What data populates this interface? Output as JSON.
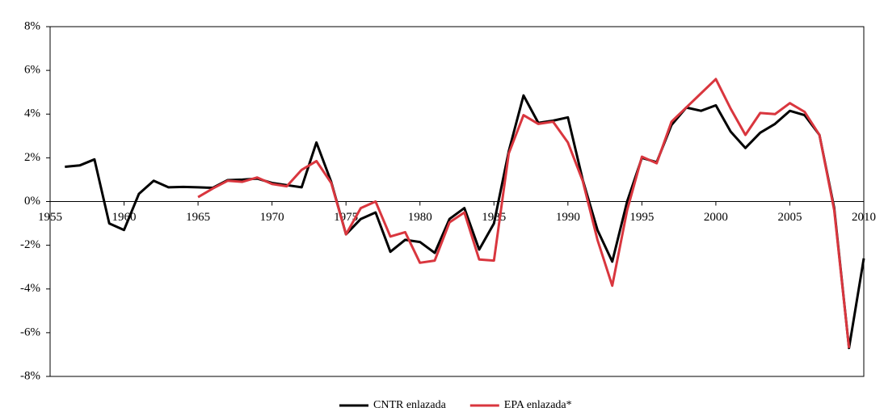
{
  "chart_data": {
    "type": "line",
    "x": [
      1956,
      1957,
      1958,
      1959,
      1960,
      1961,
      1962,
      1963,
      1964,
      1965,
      1966,
      1967,
      1968,
      1969,
      1970,
      1971,
      1972,
      1973,
      1974,
      1975,
      1976,
      1977,
      1978,
      1979,
      1980,
      1981,
      1982,
      1983,
      1984,
      1985,
      1986,
      1987,
      1988,
      1989,
      1990,
      1991,
      1992,
      1993,
      1994,
      1995,
      1996,
      1997,
      1998,
      1999,
      2000,
      2001,
      2002,
      2003,
      2004,
      2005,
      2006,
      2007,
      2008,
      2009,
      2010
    ],
    "series": [
      {
        "name": "CNTR enlazada",
        "color": "#000000",
        "values": [
          1.59,
          1.65,
          1.93,
          -1.0,
          -1.3,
          0.35,
          0.95,
          0.65,
          0.67,
          0.65,
          0.63,
          0.98,
          1.0,
          1.05,
          0.85,
          0.75,
          0.65,
          2.7,
          0.9,
          -1.5,
          -0.8,
          -0.5,
          -2.3,
          -1.75,
          -1.85,
          -2.35,
          -0.8,
          -0.3,
          -2.2,
          -1.0,
          2.3,
          4.85,
          3.6,
          3.7,
          3.85,
          1.0,
          -1.3,
          -2.75,
          0.0,
          2.0,
          1.8,
          3.5,
          4.3,
          4.15,
          4.4,
          3.2,
          2.45,
          3.15,
          3.55,
          4.15,
          3.95,
          3.05,
          -0.3,
          -6.7,
          -2.6
        ]
      },
      {
        "name": "EPA enlazada*",
        "color": "#d9363e",
        "values": [
          null,
          null,
          null,
          null,
          null,
          null,
          null,
          null,
          null,
          0.2,
          0.6,
          0.95,
          0.9,
          1.1,
          0.8,
          0.7,
          1.45,
          1.85,
          0.85,
          -1.5,
          -0.3,
          0.0,
          -1.6,
          -1.4,
          -2.8,
          -2.7,
          -0.95,
          -0.5,
          -2.65,
          -2.7,
          2.2,
          3.95,
          3.55,
          3.65,
          2.7,
          0.95,
          -1.75,
          -3.85,
          -0.4,
          2.05,
          1.75,
          3.65,
          4.3,
          4.95,
          5.6,
          4.25,
          3.05,
          4.05,
          4.0,
          4.5,
          4.1,
          3.05,
          -0.4,
          -6.7,
          null
        ]
      }
    ],
    "xlim": [
      1955,
      2010
    ],
    "xticks": [
      1955,
      1960,
      1965,
      1970,
      1975,
      1980,
      1985,
      1990,
      1995,
      2000,
      2005,
      2010
    ],
    "ylim": [
      -8,
      8
    ],
    "yticks": [
      {
        "value": -8,
        "label": "-8%"
      },
      {
        "value": -6,
        "label": "-6%"
      },
      {
        "value": -4,
        "label": "-4%"
      },
      {
        "value": -2,
        "label": "-2%"
      },
      {
        "value": 0,
        "label": "0%"
      },
      {
        "value": 2,
        "label": "2%"
      },
      {
        "value": 4,
        "label": "4%"
      },
      {
        "value": 6,
        "label": "6%"
      },
      {
        "value": 8,
        "label": "8%"
      }
    ]
  }
}
